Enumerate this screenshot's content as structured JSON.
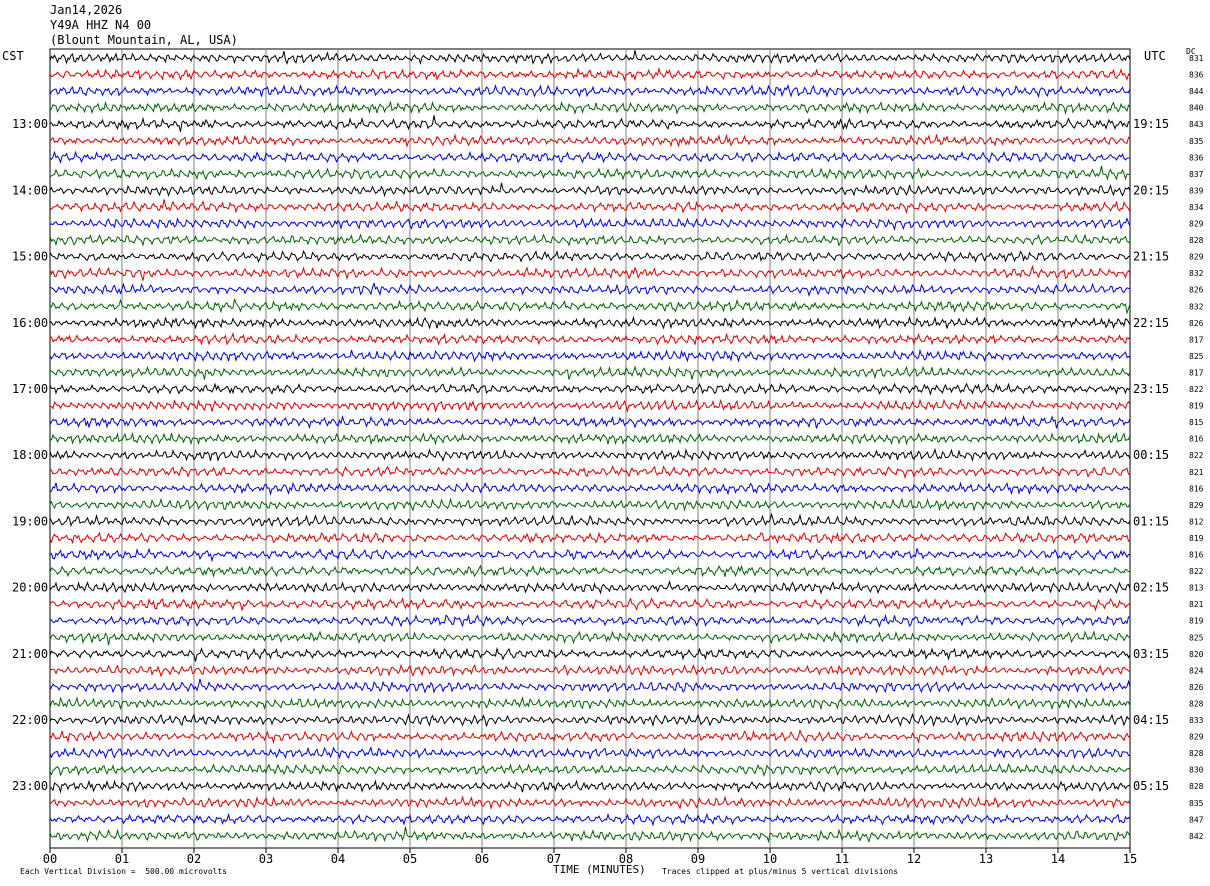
{
  "header": {
    "date": "Jan14,2026",
    "station": "Y49A HHZ N4 00",
    "location": "(Blount Mountain, AL, USA)"
  },
  "left_timezone": "CST",
  "right_timezone": "UTC",
  "dc_label": "DC",
  "footer": {
    "scale_note": "Each Vertical Division =  500.00 microvolts",
    "x_title": "TIME (MINUTES)",
    "clip_note": "Traces clipped at plus/minus 5 vertical divisions"
  },
  "colors": {
    "trace": [
      "#000000",
      "#e00000",
      "#0000e0",
      "#006400"
    ],
    "grid": "#808080"
  },
  "chart_data": {
    "type": "line",
    "title": "",
    "xlabel": "TIME (MINUTES)",
    "ylabel": "",
    "xlim": [
      0,
      15
    ],
    "x_ticks": [
      "00",
      "01",
      "02",
      "03",
      "04",
      "05",
      "06",
      "07",
      "08",
      "09",
      "10",
      "11",
      "12",
      "13",
      "14",
      "15"
    ],
    "left_hour_labels": [
      "13:00",
      "14:00",
      "15:00",
      "16:00",
      "17:00",
      "18:00",
      "19:00",
      "20:00",
      "21:00",
      "22:00",
      "23:00"
    ],
    "right_hour_labels": [
      "19:15",
      "20:15",
      "21:15",
      "22:15",
      "23:15",
      "00:15",
      "01:15",
      "02:15",
      "03:15",
      "04:15",
      "05:15"
    ],
    "row_count": 48,
    "dc_offsets": [
      831,
      836,
      844,
      840,
      843,
      835,
      836,
      837,
      839,
      834,
      829,
      828,
      829,
      832,
      826,
      832,
      826,
      817,
      825,
      817,
      822,
      819,
      815,
      816,
      822,
      821,
      816,
      829,
      812,
      819,
      816,
      822,
      813,
      821,
      819,
      825,
      820,
      824,
      826,
      828,
      833,
      829,
      828,
      830,
      828,
      835,
      847,
      842
    ],
    "grid": true
  }
}
